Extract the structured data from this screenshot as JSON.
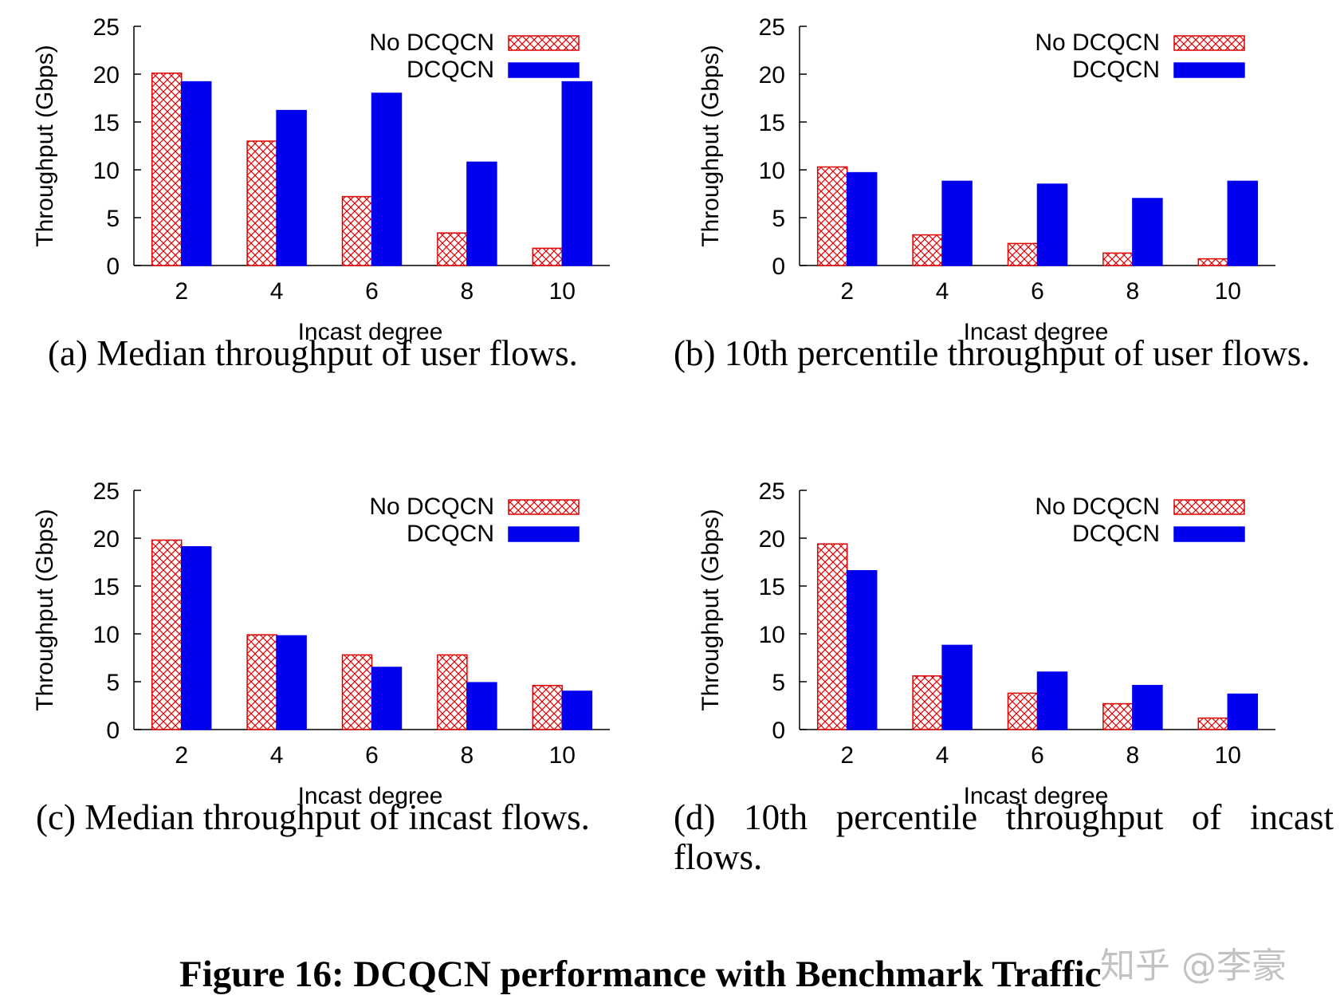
{
  "colors": {
    "no_dcqcn": "#e00000",
    "dcqcn": "#0000ee",
    "axis": "#000000"
  },
  "chart_data": [
    {
      "id": "a",
      "type": "bar",
      "categories": [
        "2",
        "4",
        "6",
        "8",
        "10"
      ],
      "series": [
        {
          "name": "No DCQCN",
          "values": [
            20.1,
            13.0,
            7.2,
            3.4,
            1.8
          ],
          "style": "hatched-red"
        },
        {
          "name": "DCQCN",
          "values": [
            19.2,
            16.2,
            18.0,
            10.8,
            19.2
          ],
          "style": "solid-blue"
        }
      ],
      "xlabel": "Incast degree",
      "ylabel": "Throughput (Gbps)",
      "ylim": [
        0,
        25
      ],
      "yticks": [
        "0",
        "5",
        "10",
        "15",
        "20",
        "25"
      ],
      "legend": "top-right",
      "caption": "(a) Median throughput of user flows."
    },
    {
      "id": "b",
      "type": "bar",
      "categories": [
        "2",
        "4",
        "6",
        "8",
        "10"
      ],
      "series": [
        {
          "name": "No DCQCN",
          "values": [
            10.3,
            3.2,
            2.3,
            1.3,
            0.7
          ],
          "style": "hatched-red"
        },
        {
          "name": "DCQCN",
          "values": [
            9.7,
            8.8,
            8.5,
            7.0,
            8.8
          ],
          "style": "solid-blue"
        }
      ],
      "xlabel": "Incast degree",
      "ylabel": "Throughput (Gbps)",
      "ylim": [
        0,
        25
      ],
      "yticks": [
        "0",
        "5",
        "10",
        "15",
        "20",
        "25"
      ],
      "legend": "top-right",
      "caption": "(b) 10th percentile throughput of user flows."
    },
    {
      "id": "c",
      "type": "bar",
      "categories": [
        "2",
        "4",
        "6",
        "8",
        "10"
      ],
      "series": [
        {
          "name": "No DCQCN",
          "values": [
            19.8,
            9.9,
            7.8,
            7.8,
            4.6
          ],
          "style": "hatched-red"
        },
        {
          "name": "DCQCN",
          "values": [
            19.1,
            9.8,
            6.5,
            4.9,
            4.0
          ],
          "style": "solid-blue"
        }
      ],
      "xlabel": "Incast degree",
      "ylabel": "Throughput (Gbps)",
      "ylim": [
        0,
        25
      ],
      "yticks": [
        "0",
        "5",
        "10",
        "15",
        "20",
        "25"
      ],
      "legend": "top-right",
      "caption": "(c) Median throughput of incast flows."
    },
    {
      "id": "d",
      "type": "bar",
      "categories": [
        "2",
        "4",
        "6",
        "8",
        "10"
      ],
      "series": [
        {
          "name": "No DCQCN",
          "values": [
            19.4,
            5.6,
            3.8,
            2.7,
            1.2
          ],
          "style": "hatched-red"
        },
        {
          "name": "DCQCN",
          "values": [
            16.6,
            8.8,
            6.0,
            4.6,
            3.7
          ],
          "style": "solid-blue"
        }
      ],
      "xlabel": "Incast degree",
      "ylabel": "Throughput (Gbps)",
      "ylim": [
        0,
        25
      ],
      "yticks": [
        "0",
        "5",
        "10",
        "15",
        "20",
        "25"
      ],
      "legend": "top-right",
      "caption": "(d) 10th percentile throughput of incast flows."
    }
  ],
  "figure_title": "Figure 16: DCQCN performance with Benchmark Traffic",
  "watermark": "知乎 @李豪"
}
